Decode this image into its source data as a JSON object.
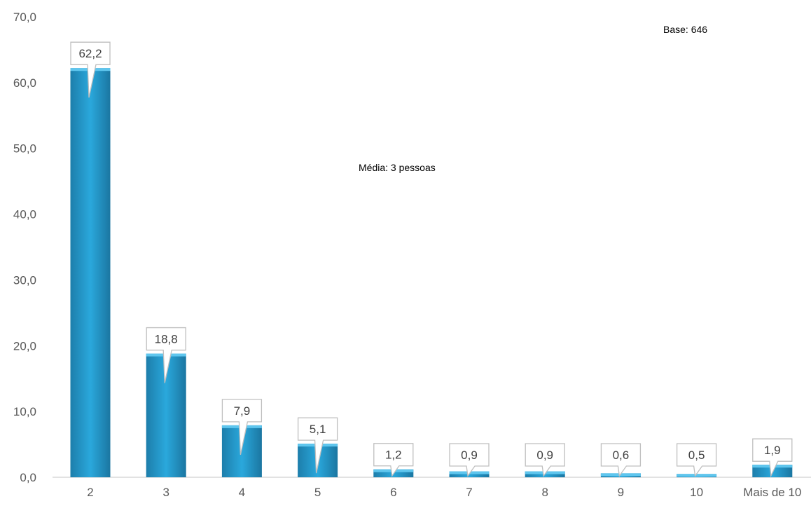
{
  "chart_data": {
    "type": "bar",
    "categories": [
      "2",
      "3",
      "4",
      "5",
      "6",
      "7",
      "8",
      "9",
      "10",
      "Mais de 10"
    ],
    "values": [
      62.2,
      18.8,
      7.9,
      5.1,
      1.2,
      0.9,
      0.9,
      0.6,
      0.5,
      1.9
    ],
    "value_labels": [
      "62,2",
      "18,8",
      "7,9",
      "5,1",
      "1,2",
      "0,9",
      "0,9",
      "0,6",
      "0,5",
      "1,9"
    ],
    "ylim": [
      0,
      70
    ],
    "yticks": [
      0,
      10,
      20,
      30,
      40,
      50,
      60,
      70
    ],
    "ytick_labels": [
      "0,0",
      "10,0",
      "20,0",
      "30,0",
      "40,0",
      "50,0",
      "60,0",
      "70,0"
    ],
    "grid": false,
    "legend": "none",
    "annotations": {
      "base": "Base: 646",
      "mean": "Média: 3 pessoas"
    },
    "colors": {
      "bar_top": "#2aa8dc",
      "bar_bottom": "#1a6f96",
      "axis": "#d9d9d9",
      "label_border": "#bfbfbf"
    }
  }
}
